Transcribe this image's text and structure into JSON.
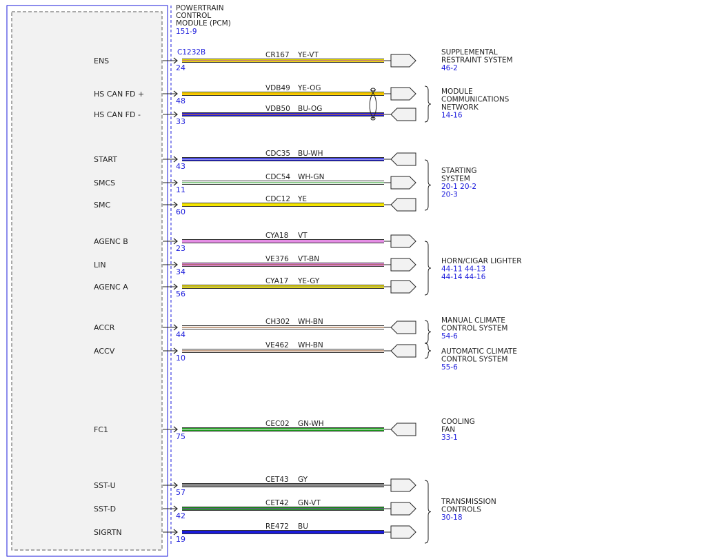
{
  "module": {
    "title_lines": [
      "POWERTRAIN",
      "CONTROL",
      "MODULE (PCM)"
    ],
    "ref": "151-9",
    "connector": "C1232B"
  },
  "wires": [
    {
      "pin_label": "ENS",
      "pin": "24",
      "circuit": "CR167",
      "color_code": "YE-VT",
      "fill": "#f5e600",
      "stripe": "#9933cc",
      "conn": "out"
    },
    {
      "pin_label": "HS CAN FD +",
      "pin": "48",
      "circuit": "VDB49",
      "color_code": "YE-OG",
      "fill": "#f5e600",
      "stripe": "#ff8c00",
      "conn": "out"
    },
    {
      "pin_label": "HS CAN FD -",
      "pin": "33",
      "circuit": "VDB50",
      "color_code": "BU-OG",
      "fill": "#1a1adb",
      "stripe": "#ff8c00",
      "conn": "in"
    },
    {
      "pin_label": "START",
      "pin": "43",
      "circuit": "CDC35",
      "color_code": "BU-WH",
      "fill": "#1a1adb",
      "stripe": "#ffffff",
      "conn": "in"
    },
    {
      "pin_label": "SMCS",
      "pin": "11",
      "circuit": "CDC54",
      "color_code": "WH-GN",
      "fill": "#ffffff",
      "stripe": "#1a9a1a",
      "conn": "out"
    },
    {
      "pin_label": "SMC",
      "pin": "60",
      "circuit": "CDC12",
      "color_code": "YE",
      "fill": "#f5e600",
      "stripe": "",
      "conn": "in"
    },
    {
      "pin_label": "AGENC B",
      "pin": "23",
      "circuit": "CYA18",
      "color_code": "VT",
      "fill": "#e58ee5",
      "stripe": "",
      "conn": "out"
    },
    {
      "pin_label": "LIN",
      "pin": "34",
      "circuit": "VE376",
      "color_code": "VT-BN",
      "fill": "#e58ee5",
      "stripe": "#8b4513",
      "conn": "out"
    },
    {
      "pin_label": "AGENC A",
      "pin": "56",
      "circuit": "CYA17",
      "color_code": "YE-GY",
      "fill": "#f5e600",
      "stripe": "#888888",
      "conn": "out"
    },
    {
      "pin_label": "ACCR",
      "pin": "44",
      "circuit": "CH302",
      "color_code": "WH-BN",
      "fill": "#ffffff",
      "stripe": "#8b4513",
      "conn": "in"
    },
    {
      "pin_label": "ACCV",
      "pin": "10",
      "circuit": "VE462",
      "color_code": "WH-BN",
      "fill": "#ffffff",
      "stripe": "#8b4513",
      "conn": "in"
    },
    {
      "pin_label": "FC1",
      "pin": "75",
      "circuit": "CEC02",
      "color_code": "GN-WH",
      "fill": "#1a9a1a",
      "stripe": "#ffffff",
      "conn": "in"
    },
    {
      "pin_label": "SST-U",
      "pin": "57",
      "circuit": "CET43",
      "color_code": "GY",
      "fill": "#888888",
      "stripe": "",
      "conn": "out"
    },
    {
      "pin_label": "SST-D",
      "pin": "42",
      "circuit": "CET42",
      "color_code": "GN-VT",
      "fill": "#1a9a1a",
      "stripe": "#9933cc",
      "conn": "out"
    },
    {
      "pin_label": "SIGRTN",
      "pin": "19",
      "circuit": "RE472",
      "color_code": "BU",
      "fill": "#1a1adb",
      "stripe": "",
      "conn": "out"
    }
  ],
  "systems": [
    {
      "name_lines": [
        "SUPPLEMENTAL",
        "RESTRAINT SYSTEM"
      ],
      "ref_lines": [
        "46-2"
      ]
    },
    {
      "name_lines": [
        "MODULE",
        "COMMUNICATIONS",
        "NETWORK"
      ],
      "ref_lines": [
        "14-16"
      ]
    },
    {
      "name_lines": [
        "STARTING",
        "SYSTEM"
      ],
      "ref_lines": [
        "20-1   20-2",
        "20-3"
      ]
    },
    {
      "name_lines": [
        "HORN/CIGAR LIGHTER"
      ],
      "ref_lines": [
        "44-11   44-13",
        "44-14   44-16"
      ]
    },
    {
      "name_lines": [
        "MANUAL CLIMATE",
        "CONTROL SYSTEM"
      ],
      "ref_lines": [
        "54-6"
      ]
    },
    {
      "name_lines": [
        "AUTOMATIC CLIMATE",
        "CONTROL SYSTEM"
      ],
      "ref_lines": [
        "55-6"
      ]
    },
    {
      "name_lines": [
        "COOLING",
        "FAN"
      ],
      "ref_lines": [
        "33-1"
      ]
    },
    {
      "name_lines": [
        "TRANSMISSION",
        "CONTROLS"
      ],
      "ref_lines": [
        "30-18"
      ]
    }
  ]
}
